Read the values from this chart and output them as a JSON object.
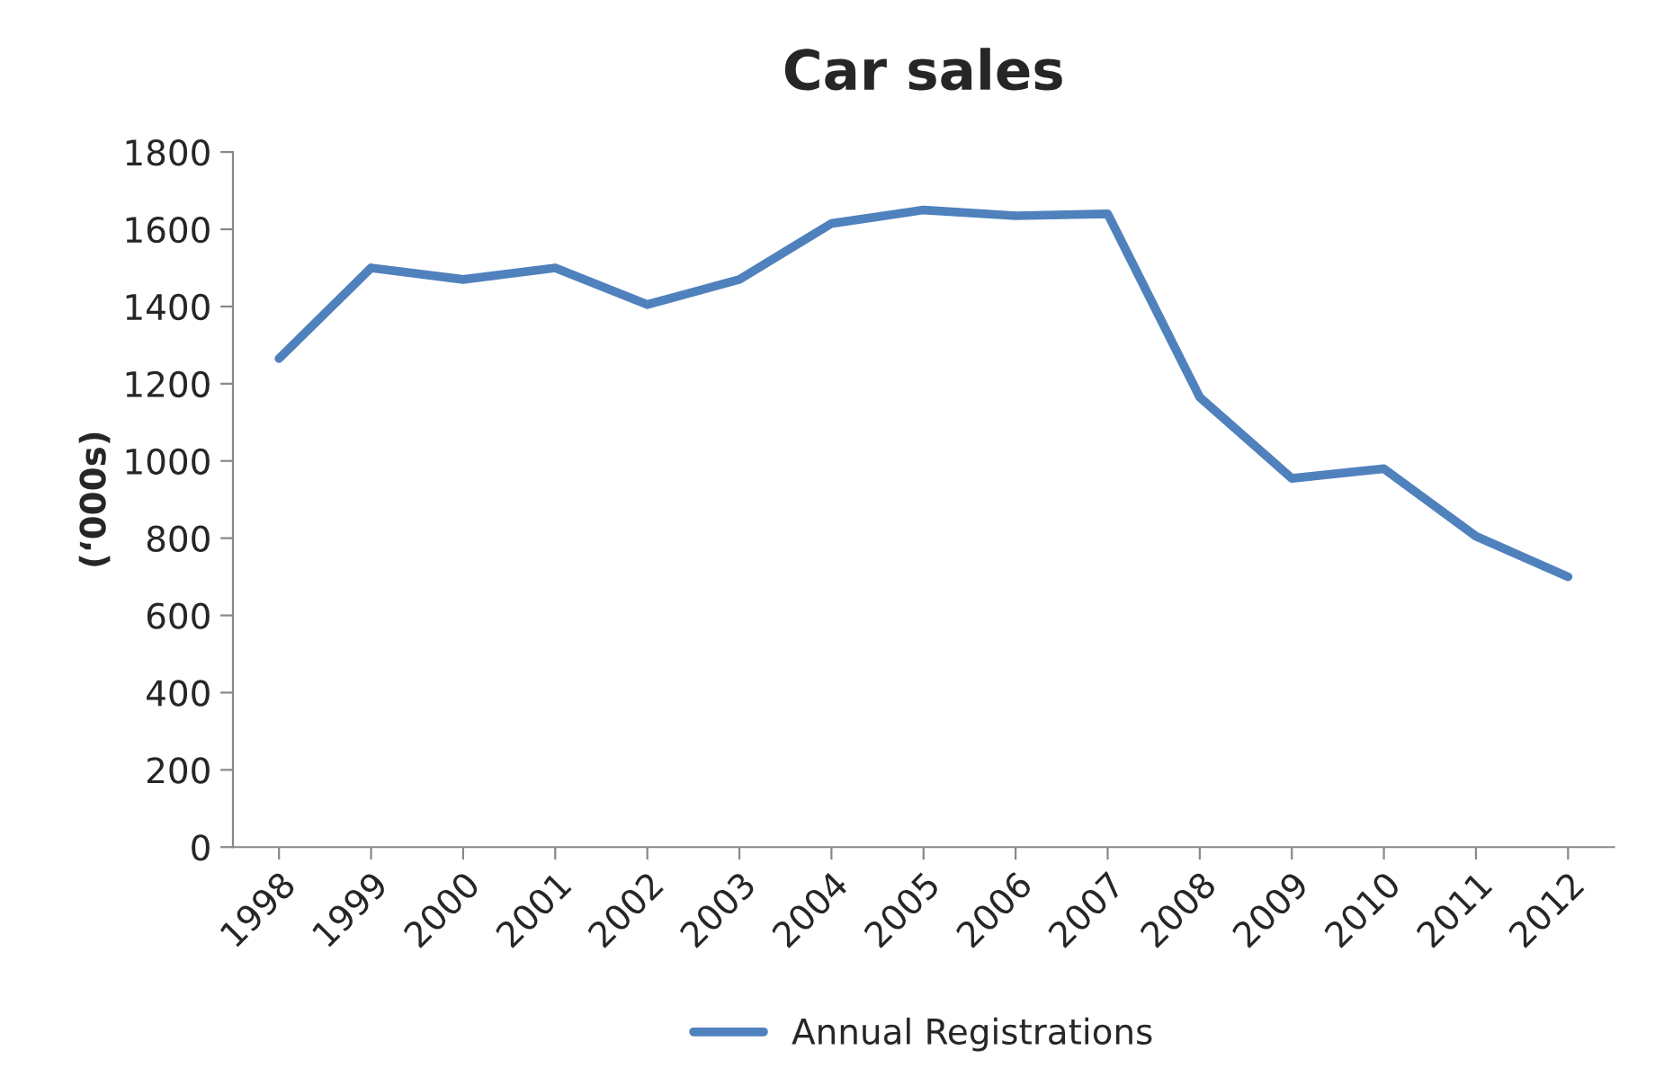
{
  "chart_data": {
    "type": "line",
    "title": "Car sales",
    "ylabel": "(‘000s)",
    "categories": [
      "1998",
      "1999",
      "2000",
      "2001",
      "2002",
      "2003",
      "2004",
      "2005",
      "2006",
      "2007",
      "2008",
      "2009",
      "2010",
      "2011",
      "2012"
    ],
    "series": [
      {
        "name": "Annual Registrations",
        "color": "#4f81bd",
        "values": [
          1265,
          1500,
          1470,
          1500,
          1405,
          1470,
          1615,
          1650,
          1635,
          1640,
          1165,
          955,
          980,
          805,
          700
        ]
      }
    ],
    "ylim": [
      0,
      1800
    ],
    "yticks": [
      0,
      200,
      400,
      600,
      800,
      1000,
      1200,
      1400,
      1600,
      1800
    ],
    "grid": false,
    "legend": "bottom",
    "marker": "none",
    "line_style": "solid"
  }
}
